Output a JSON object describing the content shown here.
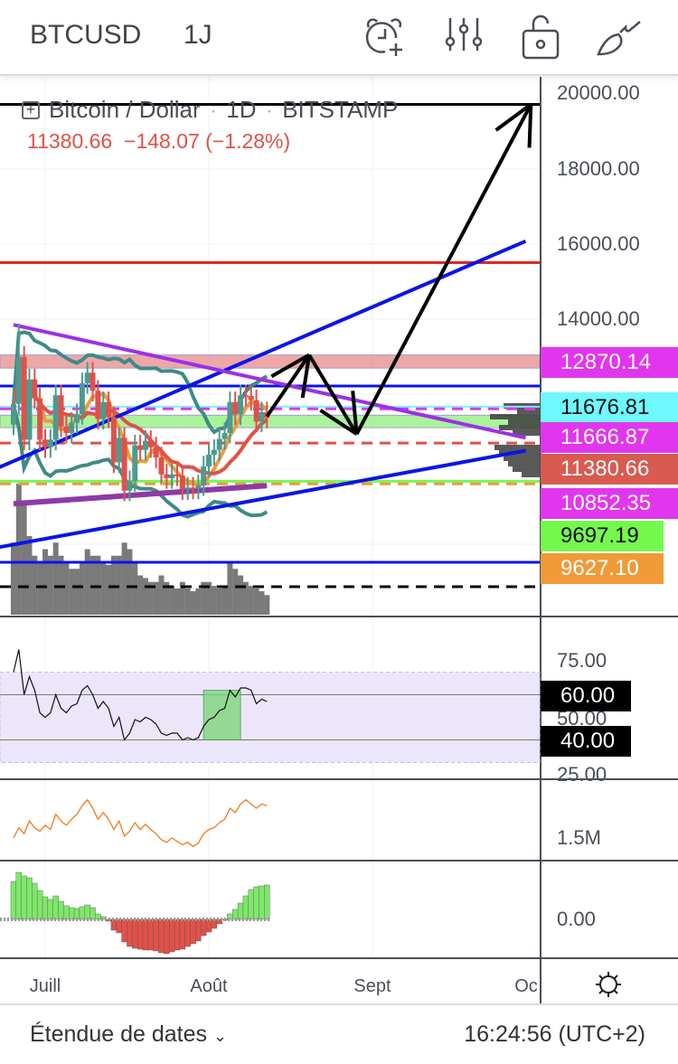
{
  "header": {
    "symbol": "BTCUSD",
    "interval": "1J",
    "icons": [
      "alarm-add-icon",
      "indicators-icon",
      "unlock-icon",
      "drawing-brush-icon"
    ]
  },
  "legend": {
    "title": "Bitcoin / Dollar",
    "interval": "1D",
    "exchange": "BITSTAMP",
    "last": "11380.66",
    "change": "−148.07 (−1.28%)"
  },
  "price_axis": {
    "ticks": [
      "20000.00",
      "18000.00",
      "16000.00",
      "14000.00"
    ]
  },
  "price_labels": [
    {
      "text": "12870.14",
      "bg": "#e236ee",
      "fg": "#ffffff"
    },
    {
      "text": "11676.81",
      "bg": "#6ff8fd",
      "fg": "#111111"
    },
    {
      "text": "11666.87",
      "bg": "#e236ee",
      "fg": "#ffffff"
    },
    {
      "text": "11380.66",
      "bg": "#d95b50",
      "fg": "#ffffff"
    },
    {
      "text": "10852.35",
      "bg": "#e236ee",
      "fg": "#ffffff"
    },
    {
      "text": "9697.19",
      "bg": "#75f84e",
      "fg": "#111111"
    },
    {
      "text": "9627.10",
      "bg": "#f09a38",
      "fg": "#ffffff"
    }
  ],
  "rsi_axis": {
    "ticks": [
      "75.00",
      "50.00",
      "25.00"
    ],
    "bands": [
      "60.00",
      "40.00"
    ]
  },
  "obv_axis": {
    "ticks": [
      "1.5M"
    ]
  },
  "macd_axis": {
    "ticks": [
      "0.00"
    ]
  },
  "x_axis": {
    "ticks": [
      "Juill",
      "Août",
      "Sept",
      "Oc"
    ]
  },
  "footer": {
    "range_label": "Étendue de dates",
    "range_icon": "chevron-down-icon",
    "time": "16:24:56 (UTC+2)",
    "settings_icon": "gear-icon"
  },
  "chart_data": {
    "type": "candlestick",
    "title": "Bitcoin / Dollar · 1D · BITSTAMP",
    "dates": [
      "06-25",
      "06-26",
      "06-27",
      "06-28",
      "06-29",
      "06-30",
      "07-01",
      "07-02",
      "07-03",
      "07-04",
      "07-05",
      "07-06",
      "07-07",
      "07-08",
      "07-09",
      "07-10",
      "07-11",
      "07-12",
      "07-13",
      "07-14",
      "07-15",
      "07-16",
      "07-17",
      "07-18",
      "07-19",
      "07-20",
      "07-21",
      "07-22",
      "07-23",
      "07-24",
      "07-25",
      "07-26",
      "07-27",
      "07-28",
      "07-29",
      "07-30",
      "07-31",
      "08-01",
      "08-02",
      "08-03",
      "08-04",
      "08-05",
      "08-06",
      "08-07",
      "08-08",
      "08-09",
      "08-10",
      "08-11",
      "08-12"
    ],
    "close": [
      11750,
      13000,
      10800,
      12400,
      11900,
      10800,
      10600,
      10800,
      11980,
      11150,
      10980,
      11250,
      11480,
      12300,
      12580,
      12100,
      11350,
      11800,
      11400,
      10200,
      10850,
      9450,
      9700,
      10650,
      10530,
      10770,
      10600,
      10330,
      9880,
      9780,
      9880,
      9850,
      9480,
      9530,
      9500,
      9590,
      10090,
      10400,
      10530,
      10820,
      10980,
      11800,
      11470,
      11980,
      11960,
      11850,
      11280,
      11530,
      11380
    ],
    "high_override": {
      "06-26": 13880
    },
    "volume": [
      55,
      100,
      85,
      60,
      45,
      40,
      50,
      45,
      55,
      45,
      40,
      35,
      35,
      40,
      50,
      45,
      45,
      40,
      38,
      45,
      45,
      55,
      50,
      40,
      30,
      28,
      25,
      25,
      30,
      25,
      22,
      20,
      25,
      20,
      18,
      20,
      25,
      25,
      22,
      20,
      22,
      40,
      35,
      30,
      25,
      22,
      20,
      18,
      15
    ],
    "rsi": [
      70,
      80,
      60,
      68,
      62,
      52,
      50,
      52,
      60,
      54,
      52,
      55,
      56,
      62,
      64,
      60,
      54,
      57,
      54,
      46,
      50,
      40,
      43,
      49,
      48,
      50,
      49,
      47,
      43,
      42,
      43,
      43,
      40,
      41,
      40,
      41,
      46,
      49,
      50,
      53,
      54,
      62,
      59,
      63,
      63,
      62,
      56,
      58,
      57
    ],
    "rsi_range": [
      0,
      100
    ],
    "obv_millions": [
      1.5,
      1.62,
      1.55,
      1.7,
      1.62,
      1.58,
      1.65,
      1.6,
      1.78,
      1.7,
      1.65,
      1.72,
      1.78,
      1.88,
      1.95,
      1.85,
      1.72,
      1.8,
      1.72,
      1.6,
      1.7,
      1.52,
      1.58,
      1.68,
      1.6,
      1.66,
      1.6,
      1.55,
      1.48,
      1.45,
      1.5,
      1.46,
      1.42,
      1.45,
      1.4,
      1.44,
      1.55,
      1.6,
      1.62,
      1.68,
      1.72,
      1.85,
      1.8,
      1.9,
      1.95,
      1.9,
      1.85,
      1.9,
      1.88
    ],
    "macd_hist": [
      420,
      520,
      480,
      460,
      400,
      320,
      250,
      220,
      260,
      200,
      150,
      130,
      120,
      140,
      160,
      130,
      60,
      30,
      -20,
      -120,
      -150,
      -250,
      -300,
      -320,
      -330,
      -340,
      -340,
      -350,
      -370,
      -380,
      -360,
      -340,
      -330,
      -300,
      -270,
      -240,
      -180,
      -140,
      -100,
      -50,
      -10,
      60,
      110,
      180,
      260,
      330,
      360,
      370,
      380
    ],
    "horizontal_levels": [
      {
        "price": 19700,
        "color": "#000000",
        "style": "solid"
      },
      {
        "price": 15500,
        "color": "#e0291d",
        "style": "solid"
      },
      {
        "price": 12225,
        "color": "#0a14e8",
        "style": "solid"
      },
      {
        "price": 11677,
        "color": "#6ff8fd",
        "style": "solid"
      },
      {
        "price": 11620,
        "color": "#e236ee",
        "style": "dashed"
      },
      {
        "price": 10710,
        "color": "#e0514a",
        "style": "dashed"
      },
      {
        "price": 9697,
        "color": "#75f84e",
        "style": "solid"
      },
      {
        "price": 9627,
        "color": "#f09a38",
        "style": "dashed"
      },
      {
        "price": 7545,
        "color": "#0a14e8",
        "style": "solid"
      },
      {
        "price": 6900,
        "color": "#000000",
        "style": "dashed"
      }
    ],
    "zones": [
      {
        "from": 12700,
        "to": 13050,
        "color": "#e88a8a"
      },
      {
        "from": 11120,
        "to": 11450,
        "color": "#8ef07a"
      }
    ],
    "trendlines": [
      {
        "from": [
          "06-22",
          10050
        ],
        "to": [
          "09-30",
          16070
        ],
        "color": "#0a14e8"
      },
      {
        "from": [
          "06-22",
          7940
        ],
        "to": [
          "09-30",
          10510
        ],
        "color": "#0a14e8"
      },
      {
        "from": [
          "06-25",
          13850
        ],
        "to": [
          "09-30",
          10850
        ],
        "color": "#9b30e8"
      }
    ],
    "arrows": [
      {
        "from": [
          "08-12",
          11420
        ],
        "to": [
          "08-20",
          13050
        ]
      },
      {
        "from": [
          "08-20",
          13050
        ],
        "to": [
          "08-29",
          10950
        ]
      },
      {
        "from": [
          "08-29",
          10950
        ],
        "to": [
          "10-01",
          19700
        ]
      }
    ]
  },
  "colors": {
    "up": "#4e9a8f",
    "down": "#e0514a",
    "rsi_band": "#ece6fb",
    "macd_pos": "#7ee86a",
    "macd_neg": "#e0514a"
  }
}
